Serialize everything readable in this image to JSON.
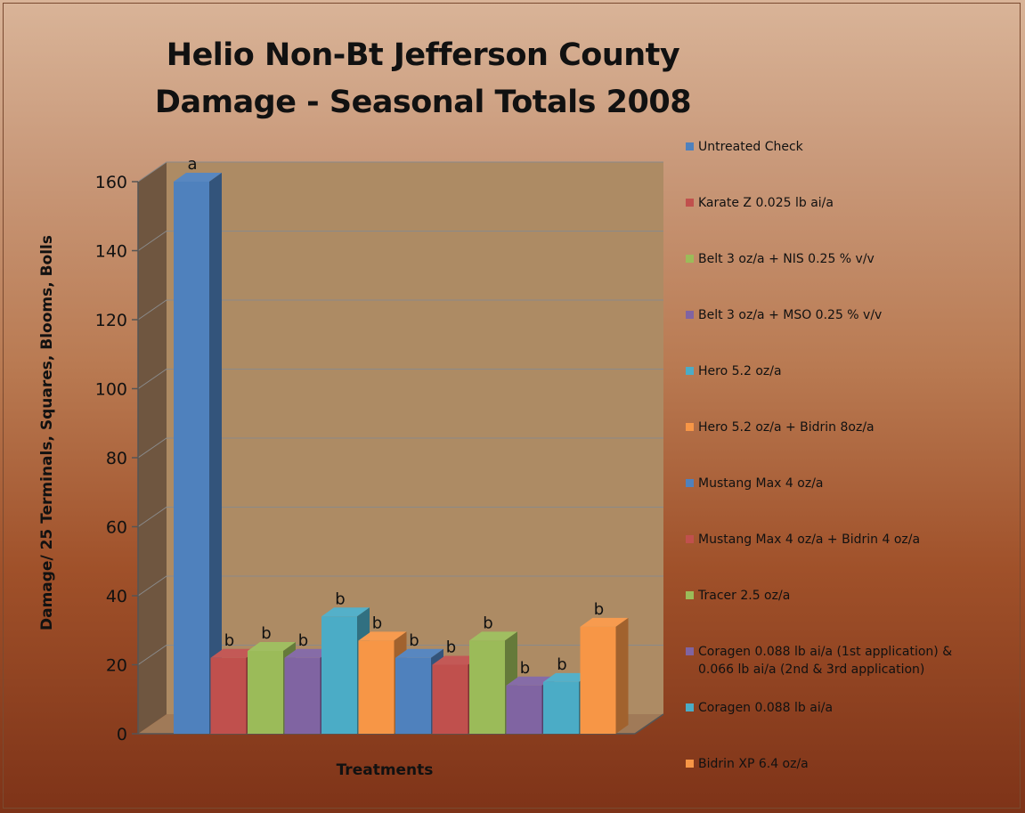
{
  "chart_data": {
    "type": "bar",
    "title_lines": [
      "Helio Non-Bt Jefferson County",
      "Damage - Seasonal Totals 2008"
    ],
    "xlabel": "Treatments",
    "ylabel": "Damage/ 25 Terminals, Squares, Blooms, Bolls",
    "ylim": [
      0,
      160
    ],
    "yticks": [
      0,
      20,
      40,
      60,
      80,
      100,
      120,
      140,
      160
    ],
    "grid": true,
    "legend_position": "right",
    "series": [
      {
        "name": "Untreated Check",
        "value": 160,
        "label": "a",
        "color": "#4f81bd"
      },
      {
        "name": "Karate Z 0.025 lb ai/a",
        "value": 22,
        "label": "b",
        "color": "#c0504d"
      },
      {
        "name": "Belt 3 oz/a + NIS 0.25 % v/v",
        "value": 24,
        "label": "b",
        "color": "#9bbb59"
      },
      {
        "name": "Belt 3 oz/a + MSO 0.25 % v/v",
        "value": 22,
        "label": "b",
        "color": "#8064a2"
      },
      {
        "name": "Hero 5.2 oz/a",
        "value": 34,
        "label": "b",
        "color": "#4bacc6"
      },
      {
        "name": "Hero 5.2 oz/a + Bidrin 8oz/a",
        "value": 27,
        "label": "b",
        "color": "#f79646"
      },
      {
        "name": "Mustang Max 4 oz/a",
        "value": 22,
        "label": "b",
        "color": "#4f81bd"
      },
      {
        "name": "Mustang Max 4 oz/a + Bidrin 4 oz/a",
        "value": 20,
        "label": "b",
        "color": "#c0504d"
      },
      {
        "name": "Tracer 2.5 oz/a",
        "value": 27,
        "label": "b",
        "color": "#9bbb59"
      },
      {
        "name": "Coragen 0.088 lb ai/a (1st application) &\n0.066 lb ai/a (2nd & 3rd application)",
        "value": 14,
        "label": "b",
        "color": "#8064a2"
      },
      {
        "name": "Coragen 0.088 lb ai/a",
        "value": 15,
        "label": "b",
        "color": "#4bacc6"
      },
      {
        "name": "Bidrin XP 6.4 oz/a",
        "value": 31,
        "label": "b",
        "color": "#f79646"
      }
    ]
  }
}
